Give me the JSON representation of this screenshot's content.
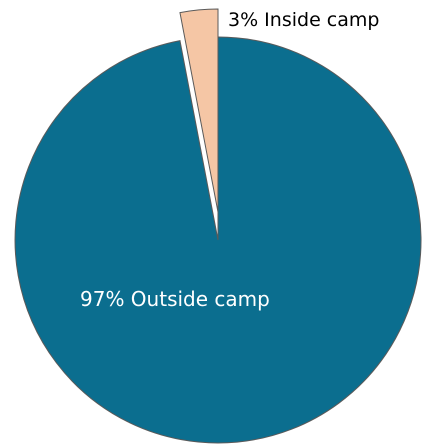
{
  "chart_data": {
    "type": "pie",
    "slices": [
      {
        "label": "97% Outside camp",
        "value": 97,
        "color": "#0b6e8f"
      },
      {
        "label": "3% Inside camp",
        "value": 3,
        "color": "#f5c6a5",
        "exploded": true
      }
    ]
  }
}
